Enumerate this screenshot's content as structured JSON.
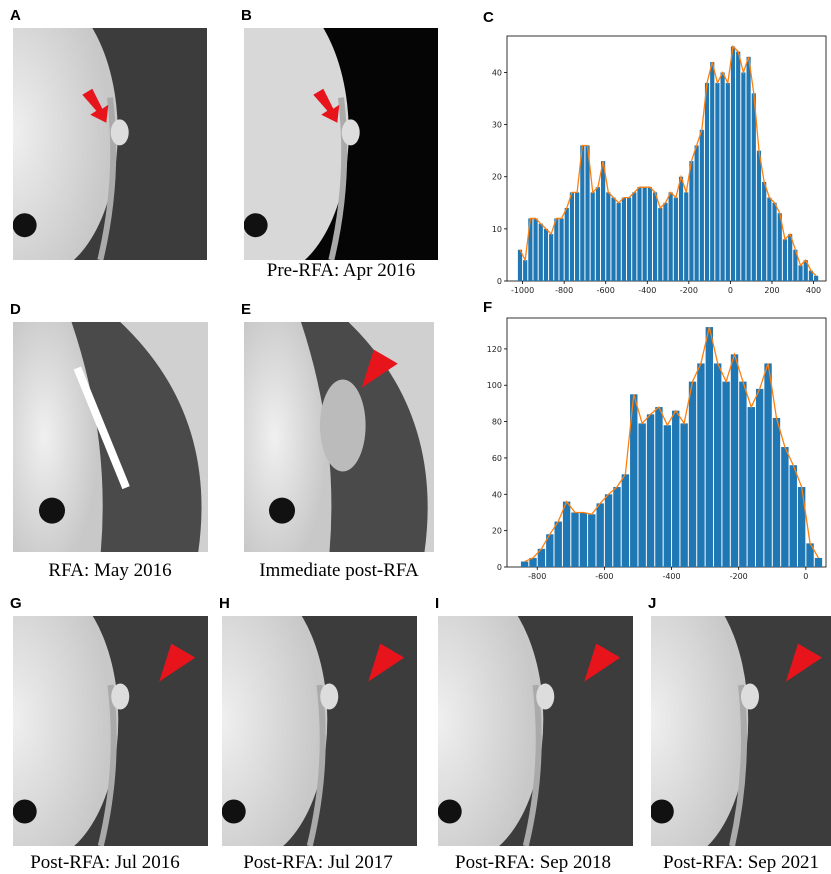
{
  "panels": [
    {
      "label": "A"
    },
    {
      "label": "B",
      "caption": "Pre-RFA: Apr 2016"
    },
    {
      "label": "D",
      "caption": "RFA: May 2016"
    },
    {
      "label": "E",
      "caption": "Immediate post-RFA"
    },
    {
      "label": "G",
      "caption": "Post-RFA: Jul 2016"
    },
    {
      "label": "H",
      "caption": "Post-RFA: Jul 2017"
    },
    {
      "label": "I",
      "caption": "Post-RFA: Sep 2018"
    },
    {
      "label": "J",
      "caption": "Post-RFA: Sep 2021"
    }
  ],
  "chart_data": [
    {
      "type": "histogram",
      "label": "C",
      "color": "#1f77b4",
      "line_color": "#ff7f0e",
      "bins": [
        -1025,
        -1000,
        -975,
        -950,
        -925,
        -900,
        -875,
        -850,
        -825,
        -800,
        -775,
        -750,
        -725,
        -700,
        -675,
        -650,
        -625,
        -600,
        -575,
        -550,
        -525,
        -500,
        -475,
        -450,
        -425,
        -400,
        -375,
        -350,
        -325,
        -300,
        -275,
        -250,
        -225,
        -200,
        -175,
        -150,
        -125,
        -100,
        -75,
        -50,
        -25,
        0,
        25,
        50,
        75,
        100,
        125,
        150,
        175,
        200,
        225,
        250,
        275,
        300,
        325,
        350,
        375,
        400,
        425
      ],
      "counts": [
        6,
        4,
        12,
        12,
        11,
        10,
        9,
        12,
        12,
        14,
        17,
        17,
        26,
        26,
        17,
        18,
        23,
        17,
        16,
        15,
        16,
        16,
        17,
        18,
        18,
        18,
        17,
        14,
        15,
        17,
        16,
        20,
        17,
        23,
        26,
        29,
        38,
        42,
        38,
        40,
        38,
        45,
        44,
        40,
        43,
        36,
        25,
        19,
        16,
        15,
        13,
        8,
        9,
        6,
        3,
        4,
        2,
        1
      ],
      "xlim": [
        -1075,
        460
      ],
      "xticks": [
        -1000,
        -800,
        -600,
        -400,
        -200,
        0,
        200,
        400
      ],
      "ylim": [
        0,
        47
      ],
      "yticks": [
        0,
        10,
        20,
        30,
        40
      ]
    },
    {
      "type": "histogram",
      "label": "F",
      "color": "#1f77b4",
      "line_color": "#ff7f0e",
      "bins": [
        -850,
        -825,
        -800,
        -775,
        -750,
        -725,
        -700,
        -675,
        -650,
        -625,
        -600,
        -575,
        -550,
        -525,
        -500,
        -475,
        -450,
        -425,
        -400,
        -375,
        -350,
        -325,
        -300,
        -275,
        -250,
        -225,
        -200,
        -175,
        -150,
        -125,
        -100,
        -75,
        -50,
        -25,
        0,
        25,
        50
      ],
      "counts": [
        3,
        5,
        10,
        18,
        25,
        36,
        30,
        30,
        29,
        35,
        40,
        44,
        51,
        95,
        79,
        84,
        88,
        78,
        86,
        79,
        102,
        112,
        132,
        112,
        102,
        117,
        102,
        88,
        98,
        112,
        82,
        66,
        56,
        44,
        13,
        5
      ],
      "xlim": [
        -890,
        60
      ],
      "xticks": [
        -800,
        -600,
        -400,
        -200,
        0
      ],
      "ylim": [
        0,
        137
      ],
      "yticks": [
        0,
        20,
        40,
        60,
        80,
        100,
        120
      ]
    }
  ]
}
